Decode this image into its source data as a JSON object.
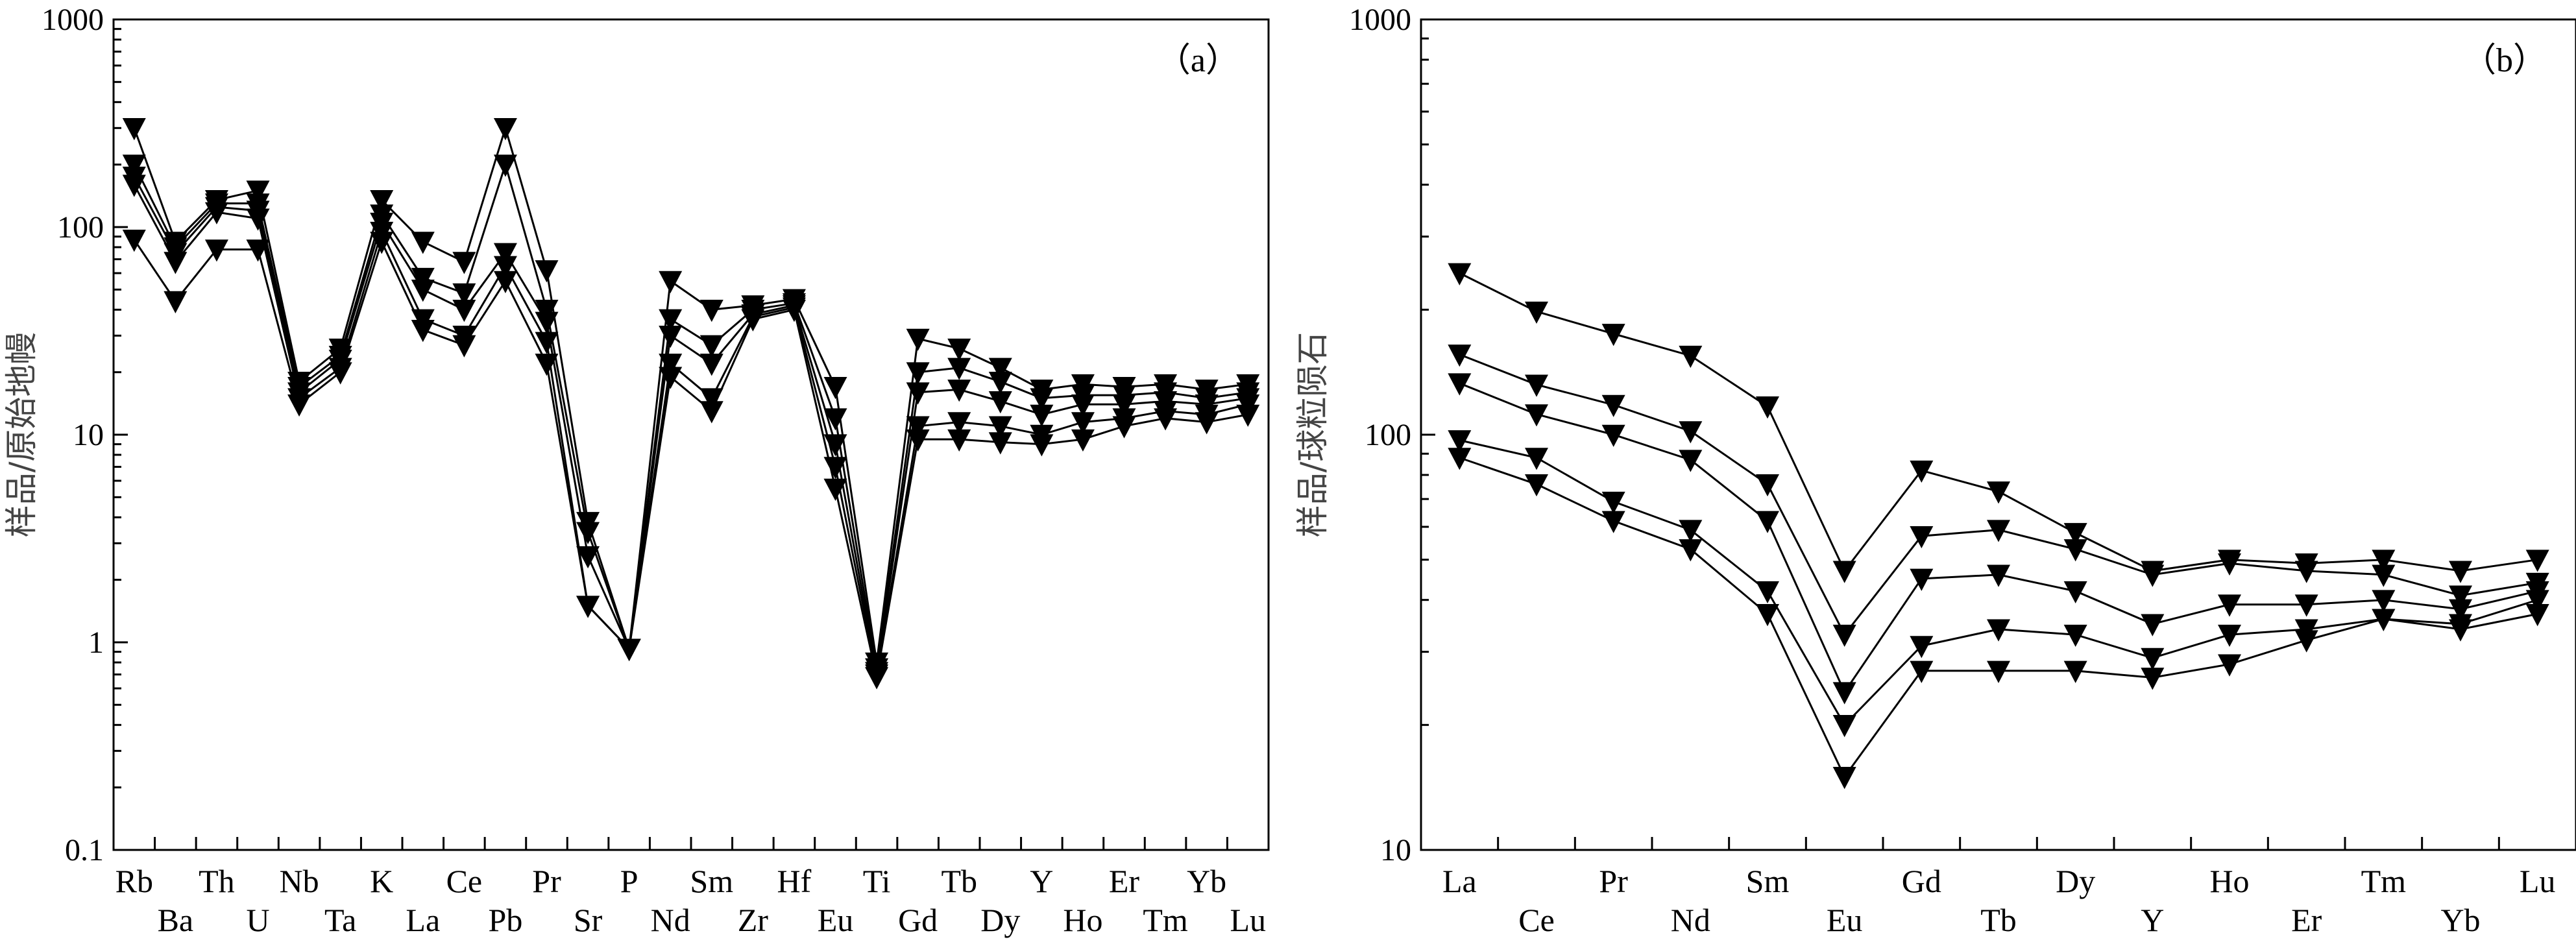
{
  "chart_data": [
    {
      "type": "line",
      "panel_label": "（a）",
      "ylabel": "样品/原始地幔",
      "y_scale": "log",
      "ylim": [
        0.1,
        1000
      ],
      "yticks": [
        "0.1",
        "1",
        "10",
        "100",
        "1000"
      ],
      "categories": [
        "Rb",
        "Ba",
        "Th",
        "U",
        "Nb",
        "Ta",
        "K",
        "La",
        "Ce",
        "Pb",
        "Pr",
        "Sr",
        "P",
        "Nd",
        "Sm",
        "Zr",
        "Hf",
        "Eu",
        "Ti",
        "Gd",
        "Tb",
        "Dy",
        "Y",
        "Ho",
        "Er",
        "Tm",
        "Yb",
        "Lu"
      ],
      "series": [
        {
          "values": [
            300,
            85,
            135,
            150,
            18,
            26,
            135,
            85,
            68,
            300,
            62,
            3.8,
            0.93,
            55,
            40,
            42,
            45,
            17,
            0.8,
            29,
            26,
            21,
            16.5,
            17.5,
            17,
            17.5,
            16.5,
            17.5
          ]
        },
        {
          "values": [
            200,
            80,
            130,
            130,
            17,
            24,
            115,
            57,
            48,
            200,
            40,
            3.4,
            0.93,
            36,
            27,
            40,
            43,
            12,
            0.75,
            20,
            21,
            18,
            15,
            15.5,
            15.5,
            16,
            15,
            16
          ]
        },
        {
          "values": [
            175,
            75,
            125,
            120,
            16,
            23,
            105,
            50,
            40,
            75,
            35,
            2.6,
            0.93,
            30,
            22,
            38,
            42,
            9,
            0.72,
            16,
            16.5,
            14.5,
            12.5,
            14,
            14,
            14.5,
            14,
            15
          ]
        },
        {
          "values": [
            160,
            68,
            118,
            110,
            15,
            21,
            95,
            36,
            30,
            65,
            28,
            1.5,
            0.93,
            22,
            15,
            37,
            41,
            7,
            0.7,
            11,
            11.5,
            11,
            10,
            11.5,
            12,
            13,
            12.5,
            14
          ]
        },
        {
          "values": [
            87,
            44,
            78,
            78,
            14,
            20,
            85,
            32,
            27,
            55,
            22,
            1.5,
            0.93,
            19,
            13,
            36,
            40,
            5.5,
            0.68,
            9.5,
            9.5,
            9.2,
            9,
            9.5,
            11,
            12,
            11.5,
            12.5
          ]
        }
      ]
    },
    {
      "type": "line",
      "panel_label": "（b）",
      "ylabel": "样品/球粒陨石",
      "y_scale": "log",
      "ylim": [
        10,
        1000
      ],
      "yticks": [
        "10",
        "100",
        "1000"
      ],
      "categories": [
        "La",
        "Ce",
        "Pr",
        "Nd",
        "Sm",
        "Eu",
        "Gd",
        "Tb",
        "Dy",
        "Y",
        "Ho",
        "Er",
        "Tm",
        "Yb",
        "Lu"
      ],
      "series": [
        {
          "values": [
            245,
            198,
            175,
            155,
            117,
            47,
            82,
            73,
            58,
            47,
            50,
            49,
            50,
            47,
            50
          ]
        },
        {
          "values": [
            156,
            132,
            118,
            102,
            76,
            33,
            57,
            59,
            53,
            46,
            49,
            47,
            46,
            41,
            44
          ]
        },
        {
          "values": [
            133,
            112,
            100,
            87,
            62,
            24,
            45,
            46,
            42,
            35,
            39,
            39,
            40,
            38,
            42
          ]
        },
        {
          "values": [
            97,
            88,
            69,
            59,
            42,
            20,
            31,
            34,
            33,
            29,
            33,
            34,
            36,
            35,
            40
          ]
        },
        {
          "values": [
            88,
            76,
            62,
            53,
            37,
            15,
            27,
            27,
            27,
            26,
            28,
            32,
            36,
            34,
            37
          ]
        }
      ]
    }
  ]
}
